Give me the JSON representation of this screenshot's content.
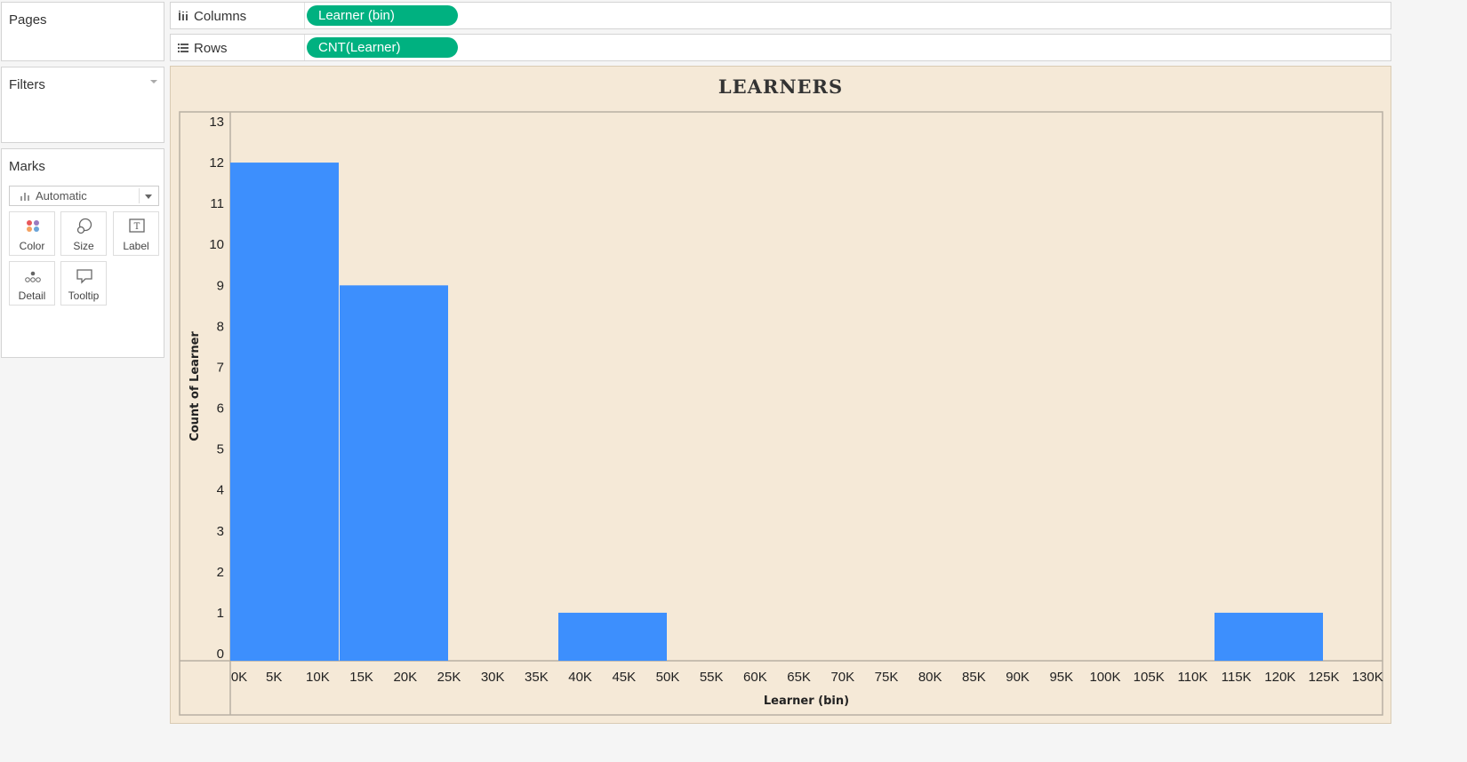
{
  "pages_panel": {
    "title": "Pages"
  },
  "filters_panel": {
    "title": "Filters"
  },
  "marks_panel": {
    "title": "Marks",
    "mark_type": "Automatic",
    "buttons": [
      {
        "label": "Color",
        "icon": "color-icon"
      },
      {
        "label": "Size",
        "icon": "size-icon"
      },
      {
        "label": "Label",
        "icon": "label-icon"
      },
      {
        "label": "Detail",
        "icon": "detail-icon"
      },
      {
        "label": "Tooltip",
        "icon": "tooltip-icon"
      }
    ]
  },
  "shelves": {
    "columns": {
      "label": "Columns",
      "pill": "Learner (bin)"
    },
    "rows": {
      "label": "Rows",
      "pill": "CNT(Learner)"
    }
  },
  "colors": {
    "pill": "#00b180",
    "bar": "#3d8ffd",
    "background": "#f5e9d7"
  },
  "chart_data": {
    "type": "bar",
    "title": "LEARNERS",
    "xlabel": "Learner (bin)",
    "ylabel": "Count of Learner",
    "x_ticks": [
      "0K",
      "5K",
      "10K",
      "15K",
      "20K",
      "25K",
      "30K",
      "35K",
      "40K",
      "45K",
      "50K",
      "55K",
      "60K",
      "65K",
      "70K",
      "75K",
      "80K",
      "85K",
      "90K",
      "95K",
      "100K",
      "105K",
      "110K",
      "115K",
      "120K",
      "125K",
      "130K"
    ],
    "y_ticks": [
      0,
      1,
      2,
      3,
      4,
      5,
      6,
      7,
      8,
      9,
      10,
      11,
      12,
      13
    ],
    "ylim": [
      0,
      13
    ],
    "xlim": [
      0,
      130000
    ],
    "bin_width": 12500,
    "bars": [
      {
        "bin_start": 0,
        "value": 12
      },
      {
        "bin_start": 12500,
        "value": 9
      },
      {
        "bin_start": 37500,
        "value": 1
      },
      {
        "bin_start": 112500,
        "value": 1
      }
    ]
  }
}
